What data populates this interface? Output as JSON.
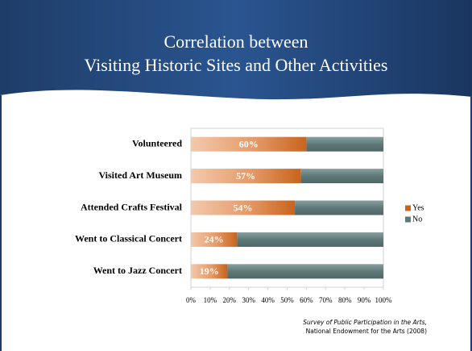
{
  "chart_data": {
    "type": "stacked_barh",
    "title": [
      "Correlation between",
      "Visiting Historic Sites and Other Activities"
    ],
    "categories": [
      "Volunteered",
      "Visited Art Museum",
      "Attended Crafts Festival",
      "Went to Classical Concert",
      "Went to Jazz Concert"
    ],
    "series": [
      {
        "name": "Yes",
        "color": "#c8641e",
        "values": [
          60,
          57,
          54,
          24,
          19
        ],
        "value_labels": [
          "60%",
          "57%",
          "54%",
          "24%",
          "19%"
        ]
      },
      {
        "name": "No",
        "color": "#5f7878",
        "values": [
          40,
          43,
          46,
          76,
          81
        ]
      }
    ],
    "xlim": [
      0,
      100
    ],
    "xticks": [
      {
        "value": 0,
        "label": "0%"
      },
      {
        "value": 10,
        "label": "10%"
      },
      {
        "value": 20,
        "label": "20%"
      },
      {
        "value": 30,
        "label": "30%"
      },
      {
        "value": 40,
        "label": "40%"
      },
      {
        "value": 50,
        "label": "50%"
      },
      {
        "value": 60,
        "label": "60%"
      },
      {
        "value": 70,
        "label": "70%"
      },
      {
        "value": 80,
        "label": "80%"
      },
      {
        "value": 90,
        "label": "90%"
      },
      {
        "value": 100,
        "label": "100%"
      }
    ],
    "grid": false,
    "legend": "right",
    "source": [
      "Survey of Public Participation in the Arts,",
      "National Endowment for the Arts (2008)"
    ]
  }
}
